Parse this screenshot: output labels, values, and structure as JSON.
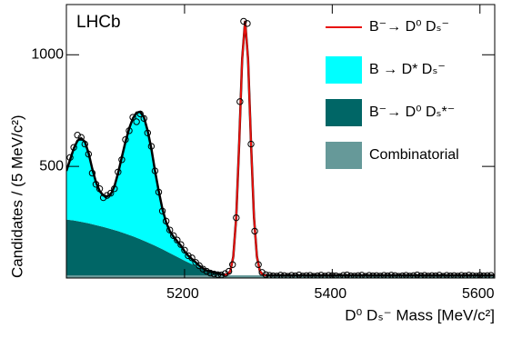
{
  "chart_data": {
    "type": "histfit",
    "annotations": [
      "LHCb"
    ],
    "x_label": "D⁰ Dₛ⁻ Mass [MeV/c²]",
    "y_label": "Candidates / (5 MeV/c²)",
    "xlim": [
      5040,
      5620
    ],
    "ylim": [
      0,
      1225
    ],
    "xticks": [
      5200,
      5400,
      5600
    ],
    "yticks": [
      500,
      1000
    ],
    "data": {
      "color": "#000000",
      "x": [
        5045,
        5050,
        5055,
        5060,
        5065,
        5070,
        5075,
        5080,
        5085,
        5090,
        5095,
        5100,
        5105,
        5110,
        5115,
        5120,
        5125,
        5130,
        5135,
        5140,
        5145,
        5150,
        5155,
        5160,
        5165,
        5170,
        5175,
        5180,
        5185,
        5190,
        5195,
        5200,
        5205,
        5210,
        5215,
        5220,
        5225,
        5230,
        5235,
        5240,
        5245,
        5250,
        5255,
        5260,
        5265,
        5270,
        5275,
        5280,
        5285,
        5290,
        5295,
        5300,
        5305,
        5310,
        5315,
        5320,
        5325,
        5330,
        5335,
        5340,
        5345,
        5350,
        5355,
        5360,
        5365,
        5370,
        5375,
        5380,
        5385,
        5390,
        5395,
        5400,
        5405,
        5410,
        5415,
        5420,
        5425,
        5430,
        5435,
        5440,
        5445,
        5450,
        5455,
        5460,
        5465,
        5470,
        5475,
        5480,
        5485,
        5490,
        5495,
        5500,
        5505,
        5510,
        5515,
        5520,
        5525,
        5530,
        5535,
        5540,
        5545,
        5550,
        5555,
        5560,
        5565,
        5570,
        5575,
        5580,
        5585,
        5590,
        5595,
        5600,
        5605,
        5610,
        5615
      ],
      "values": [
        540,
        585,
        640,
        630,
        600,
        555,
        470,
        420,
        400,
        360,
        370,
        380,
        400,
        475,
        530,
        620,
        660,
        720,
        700,
        735,
        715,
        650,
        590,
        480,
        385,
        300,
        255,
        215,
        190,
        170,
        150,
        125,
        100,
        90,
        70,
        55,
        40,
        30,
        22,
        18,
        15,
        14,
        20,
        30,
        60,
        270,
        790,
        1150,
        1140,
        600,
        210,
        60,
        25,
        15,
        12,
        10,
        9,
        13,
        11,
        8,
        12,
        10,
        14,
        9,
        11,
        12,
        8,
        10,
        13,
        9,
        12,
        11,
        10,
        7,
        12,
        14,
        10,
        9,
        11,
        13,
        8,
        12,
        10,
        11,
        9,
        12,
        10,
        13,
        11,
        8,
        10,
        12,
        9,
        11,
        14,
        10,
        12,
        9,
        11,
        10,
        13,
        8,
        12,
        10,
        11,
        9,
        12,
        10,
        13,
        11,
        9,
        12,
        10,
        11,
        12
      ]
    },
    "fit_color": "#000000",
    "series": [
      {
        "name": "Combinatorial",
        "style": "area",
        "color": "#669999",
        "x": [
          5040,
          5620
        ],
        "values": [
          12,
          12
        ]
      },
      {
        "name": "B⁻→ D⁰ Dₛ*⁻",
        "style": "area",
        "color": "#006666",
        "x": [
          5040,
          5050,
          5060,
          5070,
          5080,
          5090,
          5100,
          5110,
          5120,
          5130,
          5140,
          5150,
          5160,
          5170,
          5180,
          5190,
          5200,
          5210,
          5220,
          5230,
          5240,
          5250,
          5260
        ],
        "values": [
          250,
          246,
          240,
          233,
          225,
          217,
          208,
          198,
          187,
          175,
          162,
          148,
          133,
          117,
          100,
          83,
          66,
          50,
          35,
          22,
          12,
          5,
          0
        ]
      },
      {
        "name": "B → D* Dₛ⁻",
        "style": "area",
        "color": "#00ffff",
        "x": [
          5040,
          5045,
          5050,
          5055,
          5060,
          5065,
          5070,
          5075,
          5080,
          5085,
          5090,
          5095,
          5100,
          5105,
          5110,
          5115,
          5120,
          5125,
          5130,
          5135,
          5140,
          5145,
          5150,
          5155,
          5160,
          5165,
          5170,
          5175,
          5180,
          5185,
          5190,
          5195,
          5200,
          5205,
          5210,
          5215,
          5220,
          5225,
          5230
        ],
        "values": [
          218,
          270,
          322,
          360,
          374,
          362,
          315,
          249,
          193,
          157,
          141,
          141,
          155,
          195,
          260,
          336,
          411,
          477,
          528,
          560,
          570,
          553,
          500,
          428,
          335,
          253,
          181,
          130,
          98,
          82,
          70,
          59,
          42,
          30,
          23,
          16,
          8,
          3,
          0
        ]
      },
      {
        "name": "B⁻→ D⁰ Dₛ⁻",
        "style": "line",
        "color": "#e8100c",
        "x": [
          5254,
          5258,
          5262,
          5266,
          5270,
          5274,
          5278,
          5282,
          5286,
          5290,
          5294,
          5298,
          5302,
          5306,
          5310
        ],
        "values": [
          0,
          3,
          19,
          84,
          262,
          593,
          968,
          1140,
          968,
          593,
          262,
          84,
          19,
          3,
          0
        ]
      }
    ],
    "legend_order": [
      3,
      2,
      1,
      0
    ]
  }
}
